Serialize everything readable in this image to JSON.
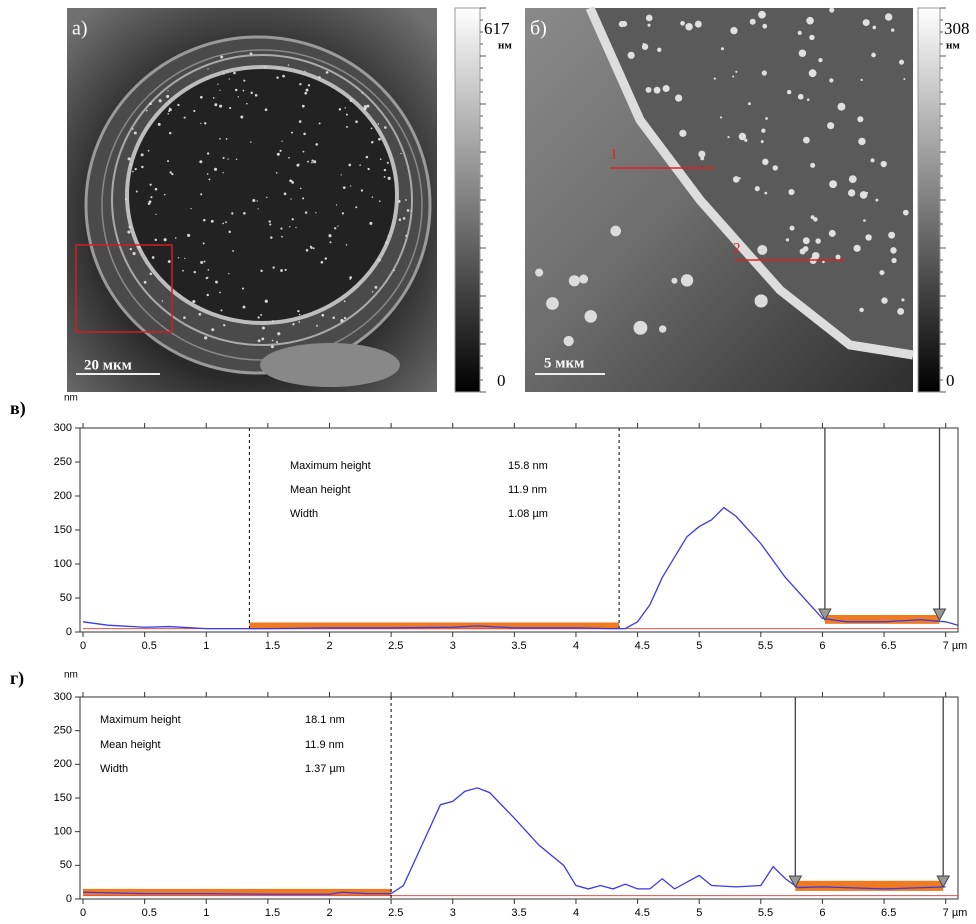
{
  "panels": [
    {
      "label": "а)",
      "colorbar_max": 617,
      "colorbar_unit": "нм",
      "colorbar_min": 0,
      "scale_bar": "20 мкм"
    },
    {
      "label": "б)",
      "colorbar_max": 308,
      "colorbar_unit": "нм",
      "colorbar_min": 0,
      "scale_bar": "5 мкм",
      "profile_labels": [
        "1",
        "2"
      ]
    }
  ],
  "chart_data": [
    {
      "type": "line",
      "label": "в)",
      "y_label": "nm",
      "xlim": [
        0,
        7.1
      ],
      "ylim": [
        0,
        300
      ],
      "xticks": [
        0,
        0.5,
        1,
        1.5,
        2,
        2.5,
        3,
        3.5,
        4,
        4.5,
        5,
        5.5,
        6,
        6.5,
        {
          "value": 7,
          "label": "7 µm"
        }
      ],
      "yticks": [
        0,
        50,
        100,
        150,
        200,
        250,
        300
      ],
      "x": [
        0,
        0.2,
        0.5,
        0.7,
        1,
        1.3,
        1.5,
        2,
        2.5,
        3,
        3.2,
        3.5,
        4,
        4.3,
        4.4,
        4.5,
        4.6,
        4.7,
        4.8,
        4.9,
        5,
        5.1,
        5.2,
        5.3,
        5.5,
        5.7,
        5.9,
        6,
        6.2,
        6.5,
        6.8,
        7,
        7.1
      ],
      "series": [
        {
          "color": "#3a3ae8",
          "values": [
            15,
            10,
            7,
            8,
            5,
            5,
            5,
            6,
            6,
            7,
            9,
            6,
            6,
            5,
            5,
            15,
            40,
            80,
            110,
            140,
            155,
            165,
            183,
            170,
            130,
            80,
            40,
            20,
            15,
            15,
            18,
            15,
            10
          ]
        }
      ],
      "baseline": 5,
      "dashed_lines": [
        1.35,
        4.35
      ],
      "cursors": [
        6.02,
        6.95
      ],
      "bands": [
        {
          "x": [
            1.35,
            4.35
          ],
          "y": [
            4,
            14
          ],
          "color": "#f07a20"
        },
        {
          "x": [
            6.02,
            6.95
          ],
          "y": [
            12,
            25
          ],
          "color": "#f07a20"
        }
      ],
      "stats": [
        {
          "label": "Maximum height",
          "value": "15.8 nm"
        },
        {
          "label": "Mean height",
          "value": "11.9 nm"
        },
        {
          "label": "Width",
          "value": "1.08 µm"
        }
      ]
    },
    {
      "type": "line",
      "label": "г)",
      "y_label": "nm",
      "xlim": [
        0,
        7.1
      ],
      "ylim": [
        0,
        300
      ],
      "xticks": [
        0,
        0.5,
        1,
        1.5,
        2,
        2.5,
        3,
        3.5,
        4,
        4.5,
        5,
        5.5,
        6,
        6.5,
        {
          "value": 7,
          "label": "7 µm"
        }
      ],
      "yticks": [
        0,
        50,
        100,
        150,
        200,
        250,
        300
      ],
      "x": [
        0,
        0.5,
        1,
        1.5,
        2,
        2.1,
        2.3,
        2.5,
        2.6,
        2.7,
        2.8,
        2.9,
        3,
        3.1,
        3.2,
        3.3,
        3.5,
        3.7,
        3.9,
        4,
        4.1,
        4.2,
        4.3,
        4.4,
        4.5,
        4.6,
        4.7,
        4.8,
        5,
        5.1,
        5.3,
        5.5,
        5.6,
        5.7,
        5.8,
        6,
        6.5,
        7
      ],
      "series": [
        {
          "color": "#3a3ae8",
          "values": [
            10,
            8,
            8,
            7,
            7,
            10,
            8,
            8,
            20,
            60,
            100,
            140,
            145,
            160,
            165,
            158,
            120,
            80,
            50,
            20,
            15,
            20,
            15,
            22,
            15,
            15,
            30,
            15,
            35,
            20,
            18,
            20,
            48,
            30,
            17,
            18,
            15,
            18
          ]
        }
      ],
      "baseline": 5,
      "dashed_lines": [
        2.5
      ],
      "cursors": [
        5.78,
        6.98
      ],
      "bands": [
        {
          "x": [
            0,
            2.5
          ],
          "y": [
            5,
            15
          ],
          "color": "#f07a20"
        },
        {
          "x": [
            5.78,
            6.98
          ],
          "y": [
            12,
            27
          ],
          "color": "#f07a20"
        }
      ],
      "stats": [
        {
          "label": "Maximum height",
          "value": "18.1 nm"
        },
        {
          "label": "Mean height",
          "value": "11.9 nm"
        },
        {
          "label": "Width",
          "value": "1.37 µm"
        }
      ]
    }
  ]
}
